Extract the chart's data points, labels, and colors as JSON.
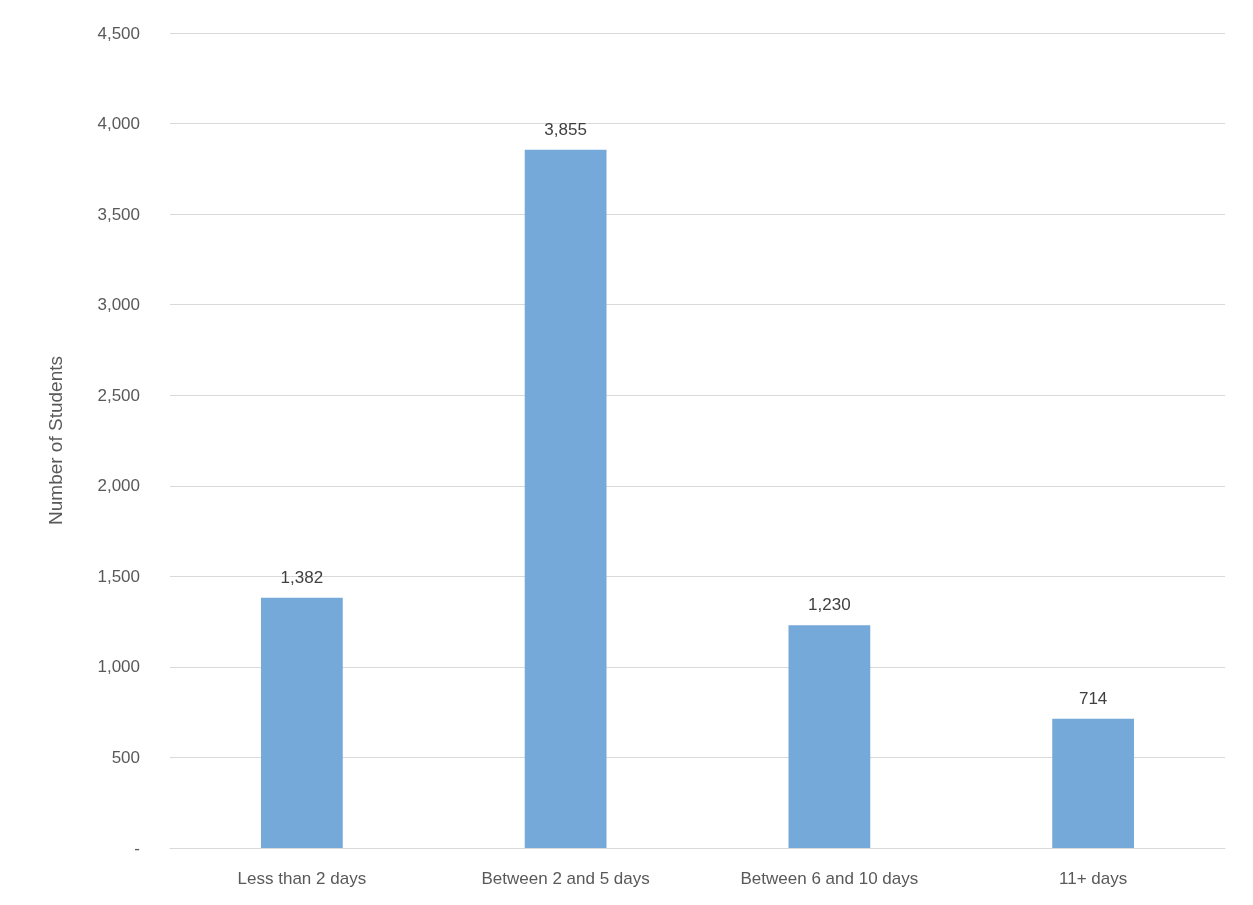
{
  "chart_data": {
    "type": "bar",
    "ylabel": "Number of Students",
    "categories": [
      "Less than 2 days",
      "Between 2 and 5 days",
      "Between 6 and 10 days",
      "11+ days"
    ],
    "values": [
      1382,
      3855,
      1230,
      714
    ],
    "value_labels": [
      "1,382",
      "3,855",
      "1,230",
      "714"
    ],
    "color": "#74a9d9",
    "ylim": [
      0,
      4500
    ],
    "yticks": [
      {
        "value": 0,
        "label": "-"
      },
      500,
      {
        "value": 1000,
        "label": "1,000"
      },
      {
        "value": 1500,
        "label": "1,500"
      },
      {
        "value": 2000,
        "label": "2,000"
      },
      {
        "value": 2500,
        "label": "2,500"
      },
      {
        "value": 3000,
        "label": "3,000"
      },
      {
        "value": 3500,
        "label": "3,500"
      },
      {
        "value": 4000,
        "label": "4,000"
      },
      {
        "value": 4500,
        "label": "4,500"
      }
    ],
    "grid": "y"
  }
}
